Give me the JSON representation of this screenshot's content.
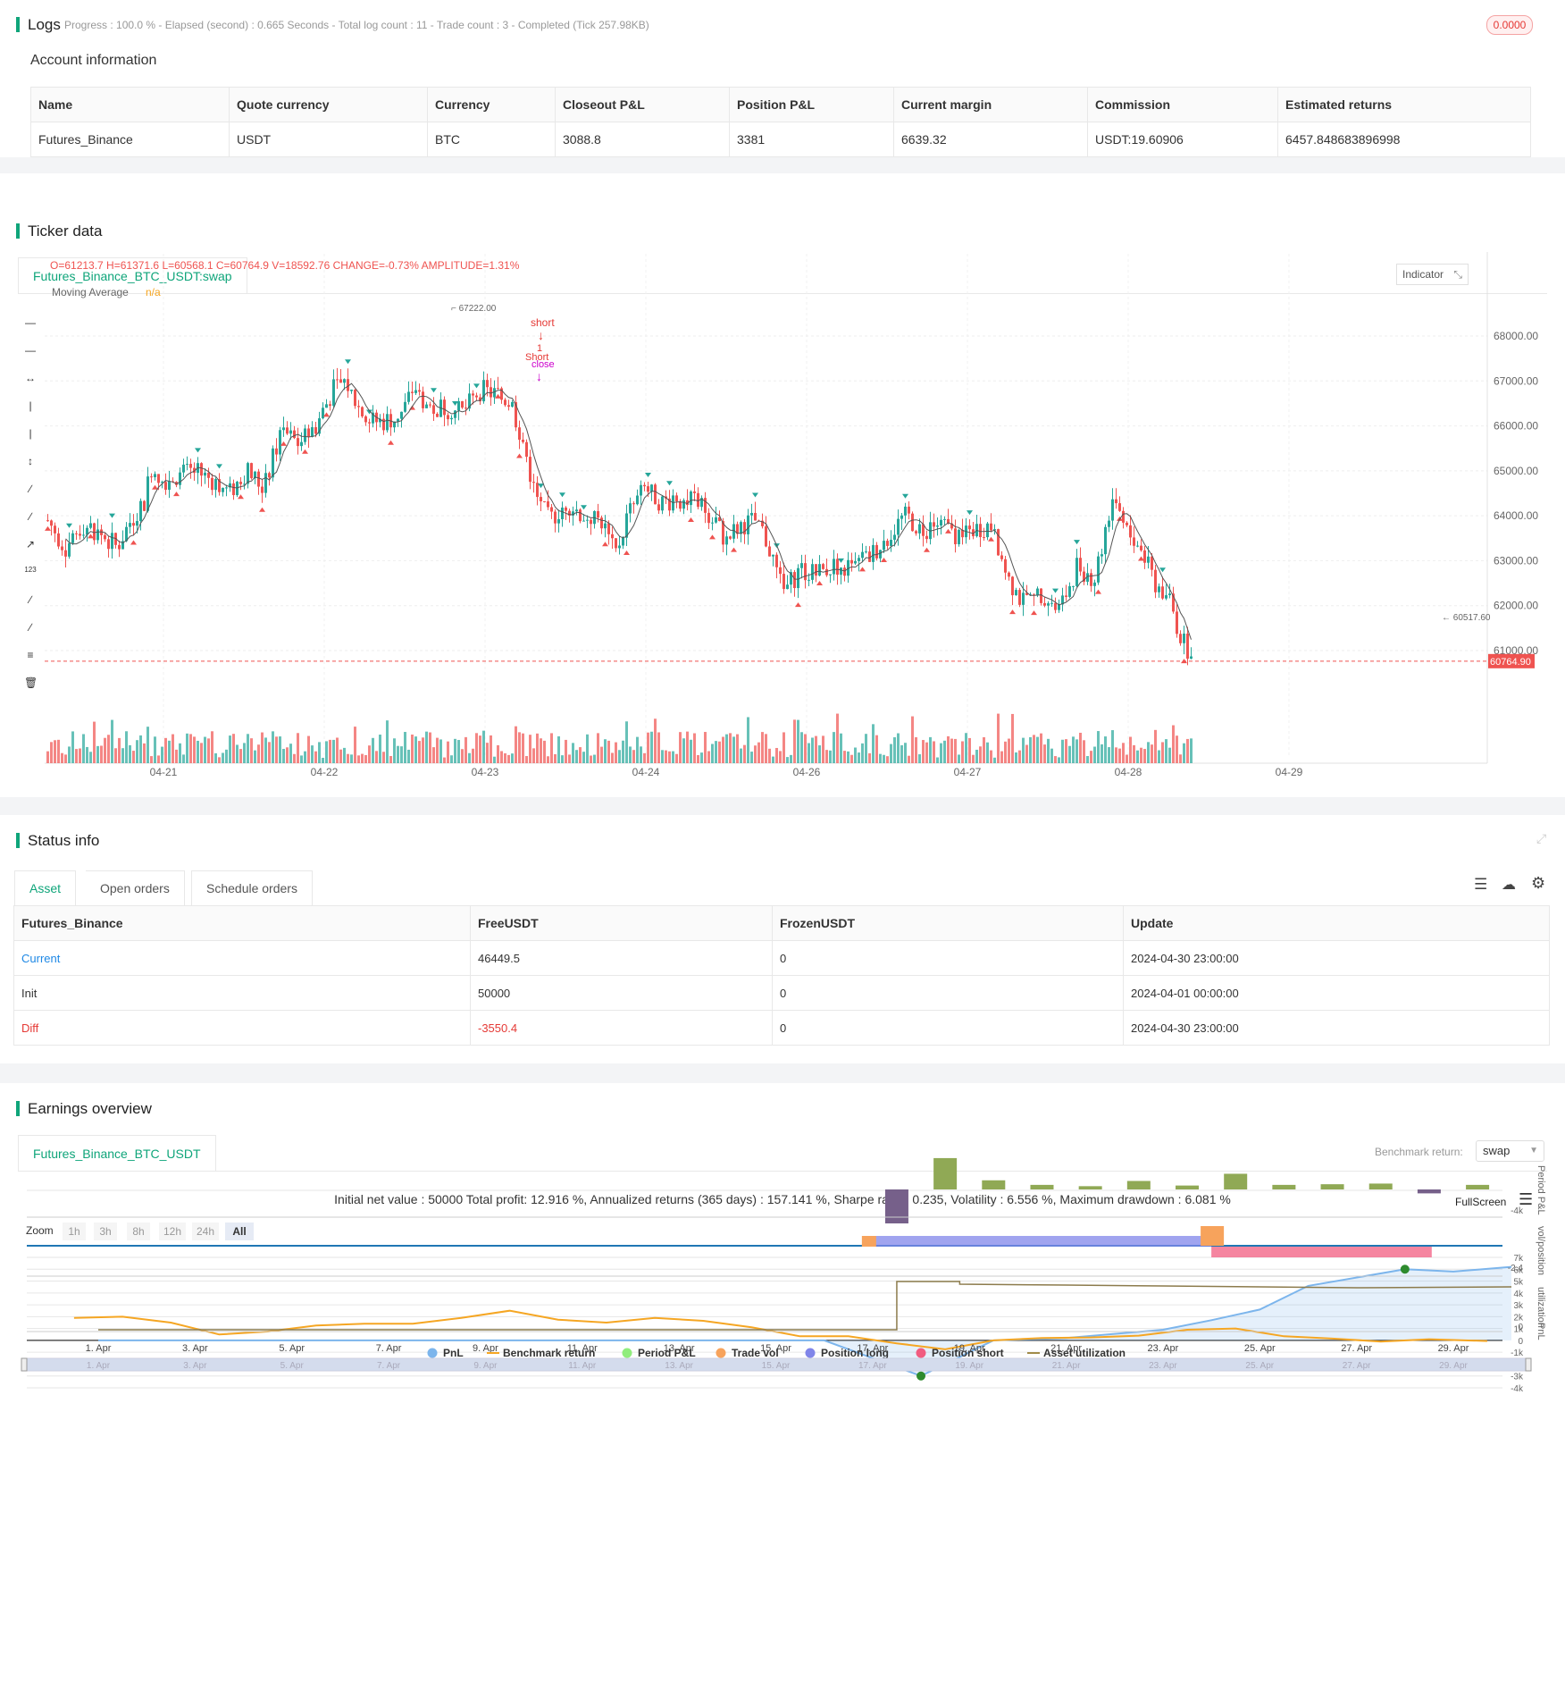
{
  "logs": {
    "title": "Logs",
    "status": "Progress : 100.0 % - Elapsed (second) : 0.665  Seconds - Total log count : 11 - Trade count : 3 - Completed (Tick 257.98KB)",
    "badge": "0.0000"
  },
  "account": {
    "title": "Account information",
    "columns": [
      "Name",
      "Quote currency",
      "Currency",
      "Closeout P&L",
      "Position P&L",
      "Current margin",
      "Commission",
      "Estimated returns"
    ],
    "row": [
      "Futures_Binance",
      "USDT",
      "BTC",
      "3088.8",
      "3381",
      "6639.32",
      "USDT:19.60906",
      "6457.848683896998"
    ]
  },
  "ticker": {
    "title": "Ticker data",
    "tab": "Futures_Binance_BTC_USDT:swap",
    "ohlc": "O=61213.7 H=61371.6 L=60568.1 C=60764.9 V=18592.76 CHANGE=-0.73% AMPLITUDE=1.31%",
    "ma_label": "Moving Average",
    "ma_value": "n/a",
    "indicator_btn": "Indicator",
    "price_ticks": [
      "68000.00",
      "67000.00",
      "66000.00",
      "65000.00",
      "64000.00",
      "63000.00",
      "62000.00",
      "61000.00"
    ],
    "current_price": "60764.90",
    "low_label": "60517.60",
    "high_label": "67222.00",
    "date_ticks": [
      "04-21",
      "04-22",
      "04-23",
      "04-24",
      "04-26",
      "04-27",
      "04-28",
      "04-29"
    ],
    "annot_short": "short",
    "annot_short2": "Short",
    "annot_one": "1",
    "annot_close": "close",
    "colors": {
      "up": "#26a69a",
      "down": "#ef5350",
      "ma": "#555555"
    }
  },
  "status": {
    "title": "Status info",
    "tabs": [
      "Asset",
      "Open orders",
      "Schedule orders"
    ],
    "columns": [
      "Futures_Binance",
      "FreeUSDT",
      "FrozenUSDT",
      "Update"
    ],
    "rows": [
      [
        "Current",
        "46449.5",
        "0",
        "2024-04-30 23:00:00"
      ],
      [
        "Init",
        "50000",
        "0",
        "2024-04-01 00:00:00"
      ],
      [
        "Diff",
        "-3550.4",
        "0",
        "2024-04-30 23:00:00"
      ]
    ]
  },
  "earnings": {
    "title": "Earnings overview",
    "tab": "Futures_Binance_BTC_USDT",
    "benchmark_label": "Benchmark return:",
    "benchmark_value": "swap",
    "summary": "Initial net value : 50000 Total profit: 12.916 %, Annualized returns (365 days) : 157.141 %, Sharpe ratio : 0.235, Volatility : 6.556 %, Maximum drawdown : 6.081 %",
    "fullscreen": "FullScreen",
    "zoom_label": "Zoom",
    "zoom_buttons": [
      "1h",
      "3h",
      "8h",
      "12h",
      "24h",
      "All"
    ],
    "pnl_ticks": [
      "7k",
      "6k",
      "5k",
      "4k",
      "3k",
      "2k",
      "1k",
      "0",
      "-1k",
      "-2k",
      "-3k",
      "-4k"
    ],
    "axis_pnl": "PnL",
    "axis_period": "Period P&L",
    "axis_vol": "vol/position",
    "axis_util": "utilization",
    "period_tick": "-4k",
    "vol_tick": "-2.4",
    "util_tick": "0",
    "x_ticks": [
      "1. Apr",
      "3. Apr",
      "5. Apr",
      "7. Apr",
      "9. Apr",
      "11. Apr",
      "13. Apr",
      "15. Apr",
      "17. Apr",
      "19. Apr",
      "21. Apr",
      "23. Apr",
      "25. Apr",
      "27. Apr",
      "29. Apr"
    ],
    "legend": [
      {
        "label": "PnL",
        "color": "#7cb5ec"
      },
      {
        "label": "Benchmark return",
        "color": "#f5a623"
      },
      {
        "label": "Period P&L",
        "color": "#90ed7d"
      },
      {
        "label": "Trade vol",
        "color": "#f7a35c"
      },
      {
        "label": "Position long",
        "color": "#8085e9"
      },
      {
        "label": "Position short",
        "color": "#f15c80"
      },
      {
        "label": "Asset utilization",
        "color": "#a08b4a"
      }
    ]
  }
}
